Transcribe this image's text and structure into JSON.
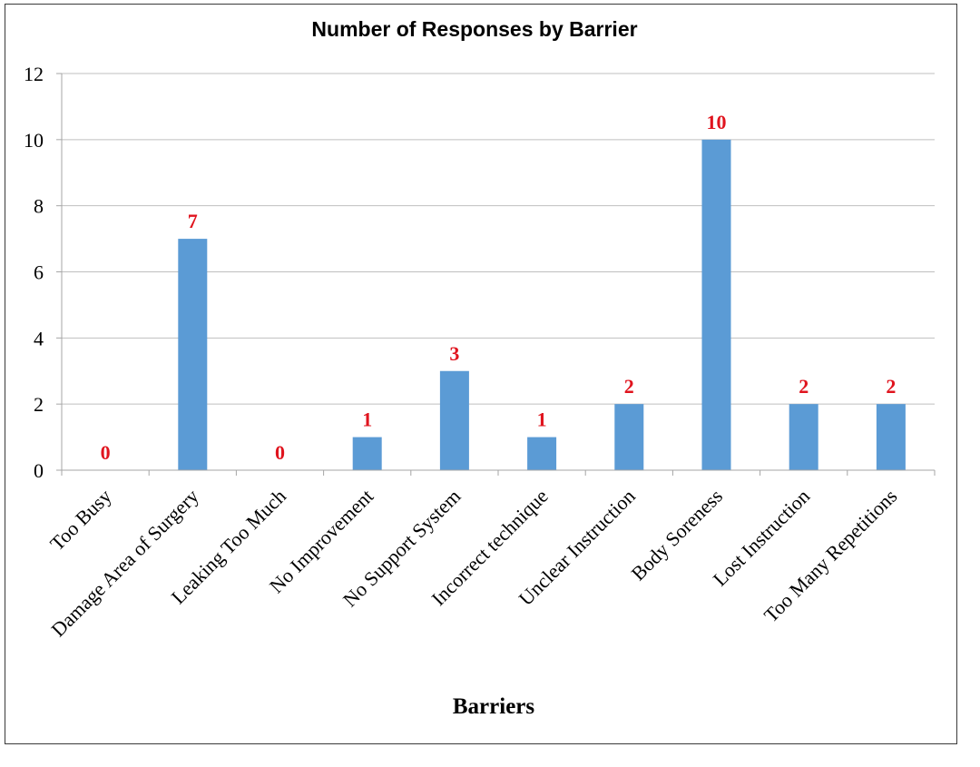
{
  "chart_data": {
    "type": "bar",
    "title": "Number of Responses by Barrier",
    "xlabel": "Barriers",
    "ylabel": "",
    "categories": [
      "Too Busy",
      "Damage Area of Surgery",
      "Leaking Too Much",
      "No Improvement",
      "No Support System",
      "Incorrect technique",
      "Unclear Instruction",
      "Body Soreness",
      "Lost Instruction",
      "Too Many Repetitions"
    ],
    "values": [
      0,
      7,
      0,
      1,
      3,
      1,
      2,
      10,
      2,
      2
    ],
    "data_labels": [
      "0",
      "7",
      "0",
      "1",
      "3",
      "1",
      "2",
      "10",
      "2",
      "2"
    ],
    "ylim": [
      0,
      12
    ],
    "yticks": [
      0,
      2,
      4,
      6,
      8,
      10,
      12
    ],
    "grid": true,
    "legend": "none",
    "colors": {
      "bar": "#5b9bd5",
      "data_label": "#e0141e",
      "grid": "#bfbfbf",
      "axis": "#a6a6a6"
    }
  }
}
